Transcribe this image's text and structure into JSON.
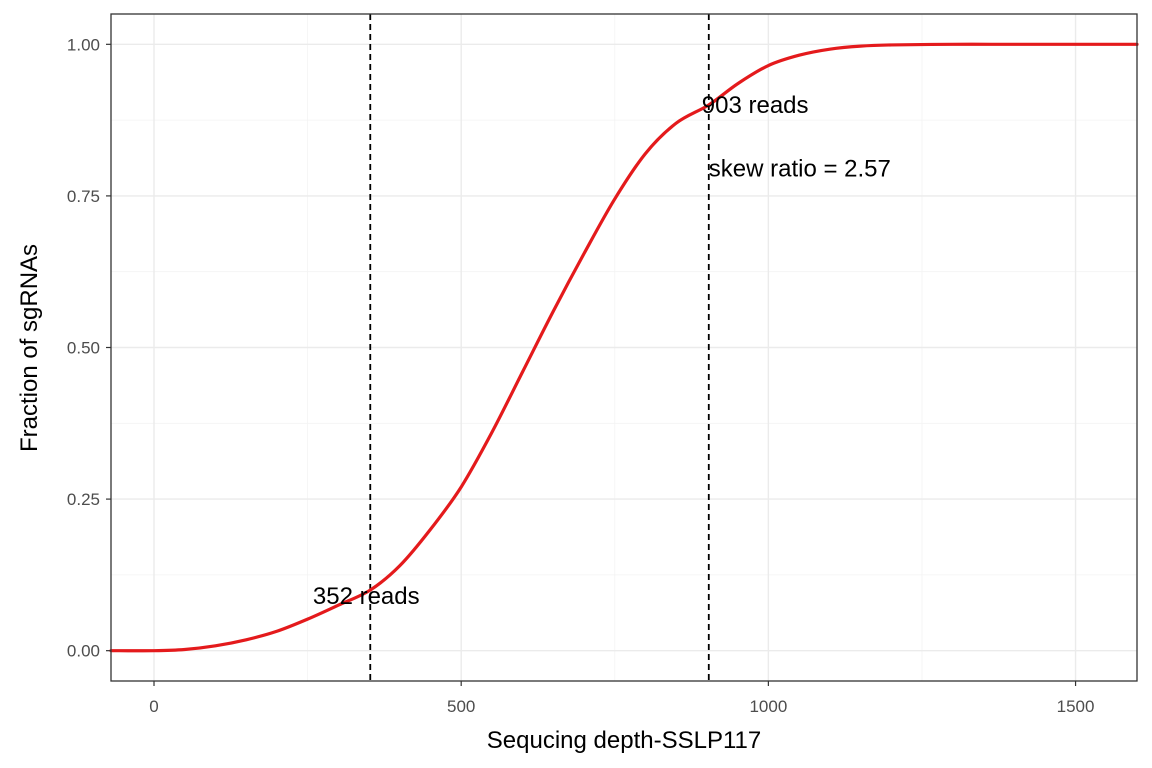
{
  "chart_data": {
    "type": "line",
    "title": "",
    "xlabel": "Sequcing depth-SSLP117",
    "ylabel": "Fraction of sgRNAs",
    "xlim": [
      -70,
      1600
    ],
    "ylim": [
      -0.05,
      1.05
    ],
    "x_ticks": [
      0,
      500,
      1000,
      1500
    ],
    "x_tick_labels": [
      "0",
      "500",
      "1000",
      "1500"
    ],
    "y_ticks": [
      0,
      0.25,
      0.5,
      0.75,
      1
    ],
    "y_tick_labels": [
      "0.00",
      "0.25",
      "0.50",
      "0.75",
      "1.00"
    ],
    "grid": true,
    "legend": "none",
    "series": [
      {
        "color": "#e41a1c",
        "x": [
          -70,
          0,
          50,
          100,
          150,
          200,
          250,
          300,
          352,
          400,
          450,
          500,
          550,
          600,
          650,
          700,
          750,
          800,
          850,
          903,
          950,
          1000,
          1050,
          1100,
          1150,
          1200,
          1300,
          1400,
          1500,
          1600
        ],
        "y": [
          0.0,
          0.0,
          0.002,
          0.008,
          0.018,
          0.032,
          0.052,
          0.075,
          0.1,
          0.14,
          0.2,
          0.27,
          0.36,
          0.46,
          0.56,
          0.655,
          0.745,
          0.82,
          0.87,
          0.9,
          0.935,
          0.965,
          0.982,
          0.992,
          0.997,
          0.999,
          1.0,
          1.0,
          1.0,
          1.0
        ]
      }
    ],
    "vlines": [
      352,
      903
    ],
    "annotations": [
      {
        "text": "352 reads",
        "x": 352,
        "y": 0.09
      },
      {
        "text": "903 reads",
        "x": 903,
        "y": 0.9
      },
      {
        "text": "skew ratio = 2.57",
        "x": 903,
        "y": 0.795
      }
    ]
  }
}
